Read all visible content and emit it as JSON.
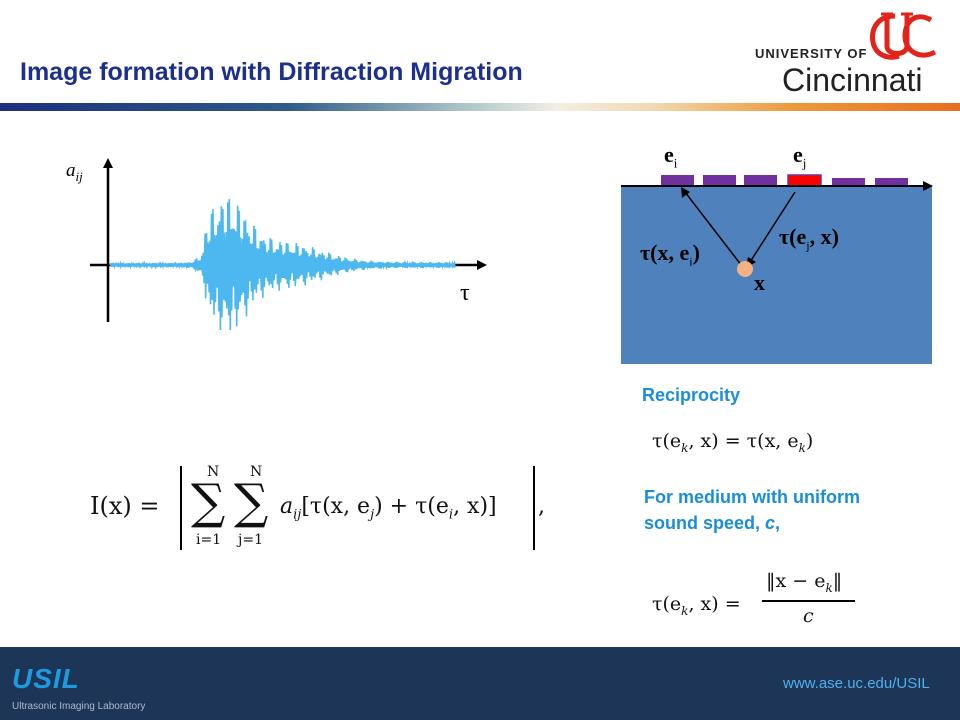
{
  "header": {
    "title": "Image formation with Diffraction Migration",
    "grad_colors": [
      "#1c2f7f",
      "#a9c3c8",
      "#f3efe4",
      "#e96d20"
    ]
  },
  "logo": {
    "university": "UNIVERSITY OF",
    "name": "Cincinnati",
    "brand_color": "#e2231a"
  },
  "signal_plot": {
    "y_label_a": "a",
    "y_label_sub": "ij",
    "x_label": "τ",
    "trace_color": "#4db8f0"
  },
  "diagram": {
    "label_ei": "e",
    "label_ei_sub": "i",
    "label_ej": "e",
    "label_ej_sub": "j",
    "label_tau_left": "τ(x, e",
    "label_tau_left_sub": "i",
    "label_tau_left_close": ")",
    "label_tau_right": "τ(e",
    "label_tau_right_sub": "j",
    "label_tau_right_rest": ", x)",
    "label_x": "x",
    "medium_color": "#4f81bd",
    "element_color": "#7030a0",
    "active_color": "#ff0000",
    "point_color": "#f4b183"
  },
  "formula": {
    "lhs": "I(x) =",
    "sum_top": "N",
    "sum_bottom_i": "i=1",
    "sum_bottom_j": "j=1",
    "body": "a",
    "body_sub": "ij",
    "body_rest": "[τ(x, e",
    "body_sub_j": "j",
    "body_rest2": ") + τ(e",
    "body_sub_i": "i",
    "body_rest3": ", x)]",
    "tail": ","
  },
  "reciprocity": {
    "heading": "Reciprocity",
    "lhs": "τ(e",
    "sub_k": "k",
    "mid": ", x) = τ(x, e",
    "rhs_end": ")"
  },
  "uniform": {
    "heading_line1": "For medium with uniform",
    "heading_line2_pre": "sound speed, ",
    "heading_c": "c",
    "heading_post": ",",
    "lhs": "τ(e",
    "sub_k": "k",
    "lhs_end": ", x) =",
    "numerator": "‖x − e",
    "numerator_end": "‖",
    "denominator": "c"
  },
  "footer": {
    "logo_text": "USIL",
    "subtitle": "Ultrasonic Imaging Laboratory",
    "url": "www.ase.uc.edu/USIL"
  }
}
